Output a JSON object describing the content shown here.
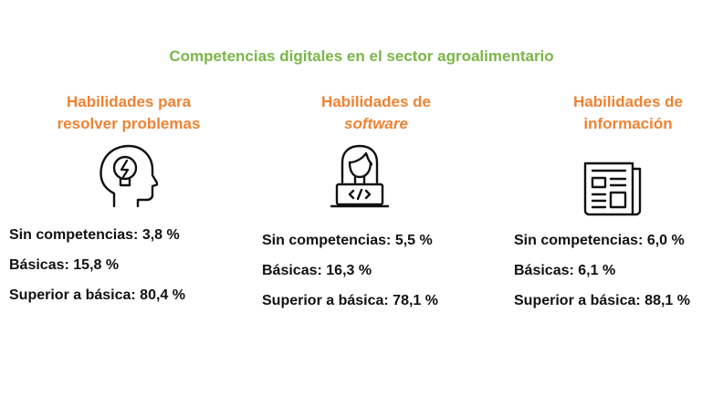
{
  "title": "Competencias digitales en el sector agroalimentario",
  "colors": {
    "title": "#7ab648",
    "heading": "#ef8233",
    "text": "#111111"
  },
  "columns": [
    {
      "heading_line1": "Habilidades para",
      "heading_line2": "resolver problemas",
      "icon": "head-lightbulb-icon",
      "stats": [
        {
          "label": "Sin competencias: 3,8 %"
        },
        {
          "label": "Básicas: 15,8 %"
        },
        {
          "label": "Superior a básica: 80,4 %"
        }
      ]
    },
    {
      "heading_line1": "Habilidades de",
      "heading_line2": "software",
      "icon": "programmer-laptop-icon",
      "stats": [
        {
          "label": "Sin competencias: 5,5 %"
        },
        {
          "label": "Básicas: 16,3 %"
        },
        {
          "label": "Superior a básica: 78,1 %"
        }
      ]
    },
    {
      "heading_line1": "Habilidades de",
      "heading_line2": "información",
      "icon": "newspaper-icon",
      "stats": [
        {
          "label": "Sin competencias: 6,0 %"
        },
        {
          "label": "Básicas: 6,1 %"
        },
        {
          "label": "Superior a básica: 88,1 %"
        }
      ]
    }
  ]
}
